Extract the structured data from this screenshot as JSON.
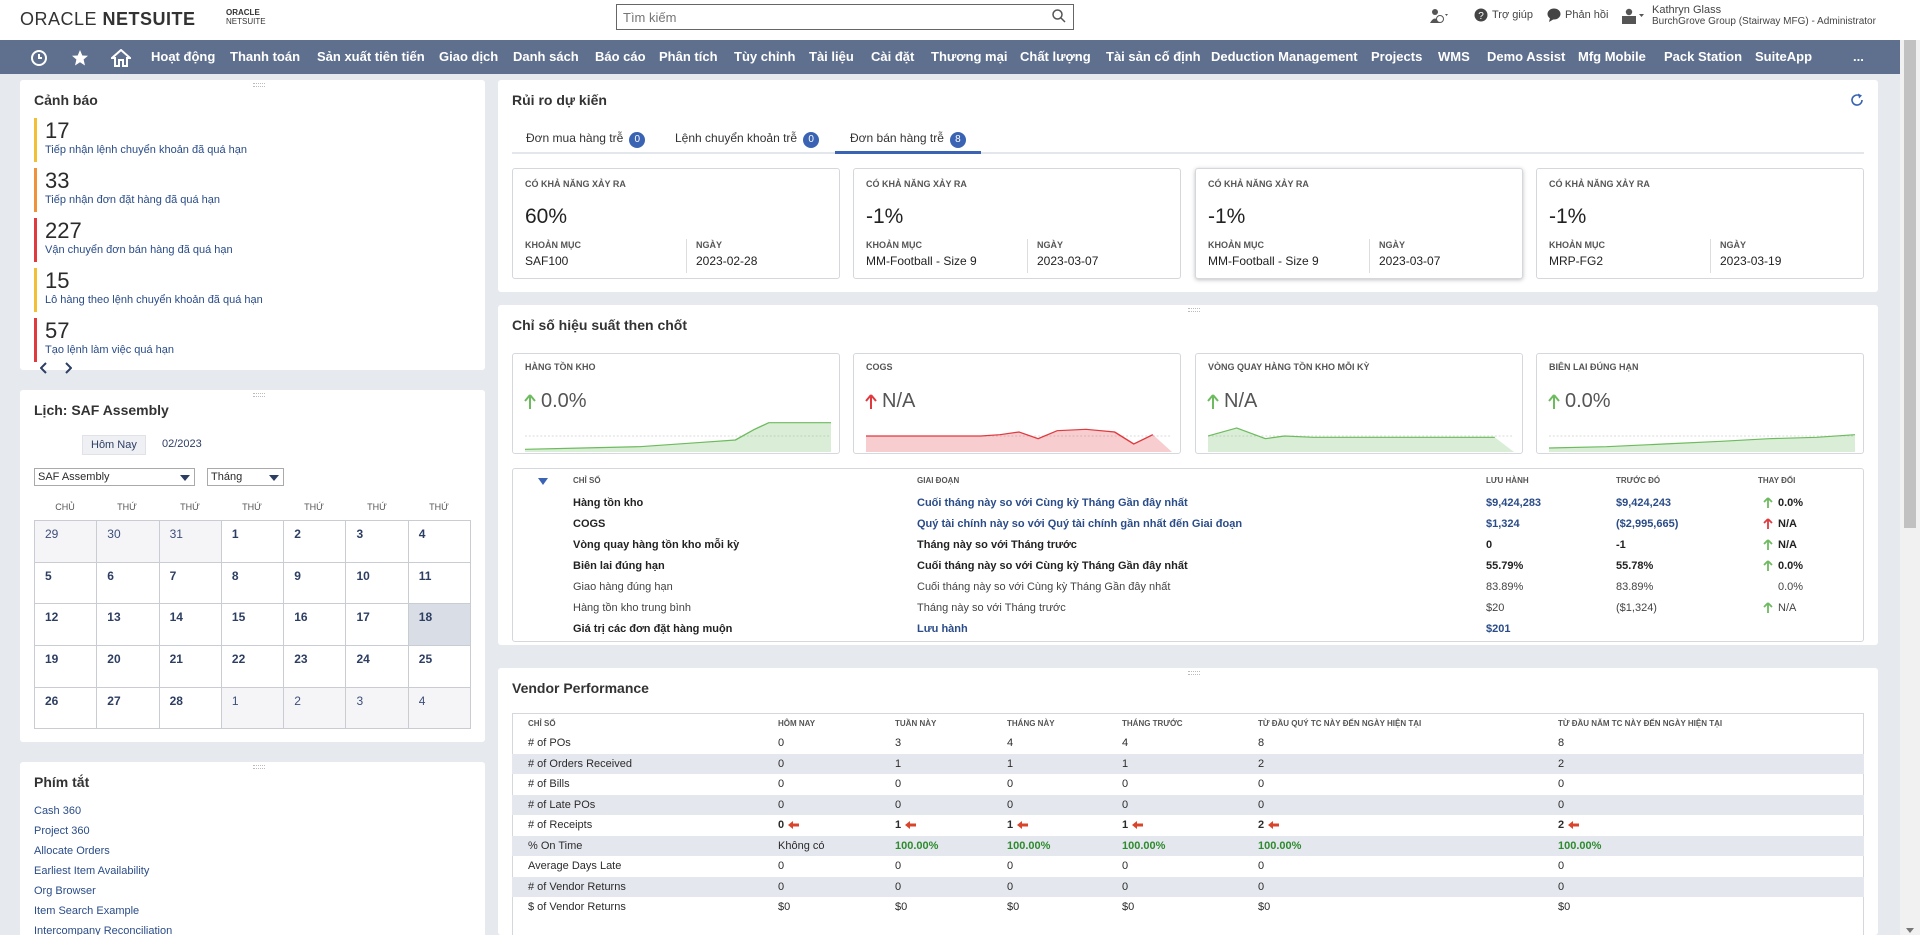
{
  "header": {
    "logo_oracle": "ORACLE",
    "logo_netsuite": "NETSUITE",
    "small_logo_1": "ORACLE",
    "small_logo_2": "NETSUITE",
    "search_placeholder": "Tìm kiếm",
    "help": "Trợ giúp",
    "feedback": "Phản hồi",
    "user_name": "Kathryn Glass",
    "user_role": "BurchGrove Group (Stairway MFG) - Administrator"
  },
  "nav": {
    "items": [
      "Hoạt động",
      "Thanh toán",
      "Sản xuất tiên tiến",
      "Giao dịch",
      "Danh sách",
      "Báo cáo",
      "Phân tích",
      "Tùy chỉnh",
      "Tài liệu",
      "Cài đặt",
      "Thương mại",
      "Chất lượng",
      "Tài sản cố định",
      "Deduction Management",
      "Projects",
      "WMS",
      "Demo Assist",
      "Mfg Mobile",
      "Pack Station",
      "SuiteApp",
      "..."
    ]
  },
  "alerts": {
    "title": "Cảnh báo",
    "items": [
      {
        "count": "17",
        "label": "Tiếp nhận lệnh chuyển khoản đã quá hạn",
        "color": "#f2c037"
      },
      {
        "count": "33",
        "label": "Tiếp nhận đơn đặt hàng đã quá hạn",
        "color": "#f0923b"
      },
      {
        "count": "227",
        "label": "Vận chuyển đơn bán hàng đã quá hạn",
        "color": "#e0393e"
      },
      {
        "count": "15",
        "label": "Lô hàng theo lệnh chuyển khoản đã quá hạn",
        "color": "#f2c037"
      },
      {
        "count": "57",
        "label": "Tạo lệnh làm việc quá hạn",
        "color": "#e0393e"
      }
    ]
  },
  "calendar": {
    "title": "Lịch: SAF Assembly",
    "today": "Hôm Nay",
    "month": "02/2023",
    "select_calendar": "SAF Assembly",
    "select_view": "Tháng",
    "dow": [
      "CHỦ",
      "THỨ",
      "THỨ",
      "THỨ",
      "THỨ",
      "THỨ",
      "THỨ"
    ],
    "weeks": [
      [
        "29",
        "30",
        "31",
        "1",
        "2",
        "3",
        "4"
      ],
      [
        "5",
        "6",
        "7",
        "8",
        "9",
        "10",
        "11"
      ],
      [
        "12",
        "13",
        "14",
        "15",
        "16",
        "17",
        "18"
      ],
      [
        "19",
        "20",
        "21",
        "22",
        "23",
        "24",
        "25"
      ],
      [
        "26",
        "27",
        "28",
        "1",
        "2",
        "3",
        "4"
      ]
    ]
  },
  "shortcuts": {
    "title": "Phím tắt",
    "items": [
      "Cash 360",
      "Project 360",
      "Allocate Orders",
      "Earliest Item Availability",
      "Org Browser",
      "Item Search Example",
      "Intercompany Reconciliation"
    ]
  },
  "risk": {
    "title": "Rủi ro dự kiến",
    "tabs": [
      {
        "label": "Đơn mua hàng trễ",
        "count": "0"
      },
      {
        "label": "Lệnh chuyển khoản trễ",
        "count": "0"
      },
      {
        "label": "Đơn bán hàng trễ",
        "count": "8"
      }
    ],
    "cards": [
      {
        "cap": "CÓ KHẢ NĂNG XẢY RA",
        "pct": "60%",
        "k1": "KHOẢN MỤC",
        "v1": "SAF100",
        "k2": "NGÀY",
        "v2": "2023-02-28"
      },
      {
        "cap": "CÓ KHẢ NĂNG XẢY RA",
        "pct": "-1%",
        "k1": "KHOẢN MỤC",
        "v1": "MM-Football - Size 9",
        "k2": "NGÀY",
        "v2": "2023-03-07"
      },
      {
        "cap": "CÓ KHẢ NĂNG XẢY RA",
        "pct": "-1%",
        "k1": "KHOẢN MỤC",
        "v1": "MM-Football - Size 9",
        "k2": "NGÀY",
        "v2": "2023-03-07"
      },
      {
        "cap": "CÓ KHẢ NĂNG XẢY RA",
        "pct": "-1%",
        "k1": "KHOẢN MỤC",
        "v1": "MRP-FG2",
        "k2": "NGÀY",
        "v2": "2023-03-19"
      }
    ]
  },
  "kpi": {
    "title": "Chỉ số hiệu suất then chốt",
    "cards": [
      {
        "cap": "HÀNG TỒN KHO",
        "val": "0.0%",
        "trend": "up",
        "color": "#6dbb5e"
      },
      {
        "cap": "COGS",
        "val": "N/A",
        "trend": "up-red",
        "color": "#e0393e"
      },
      {
        "cap": "VÒNG QUAY HÀNG TỒN KHO MỖI KỲ",
        "val": "N/A",
        "trend": "up",
        "color": "#6dbb5e"
      },
      {
        "cap": "BIÊN LAI ĐÚNG HẠN",
        "val": "0.0%",
        "trend": "up",
        "color": "#6dbb5e"
      }
    ],
    "table_headers": [
      "CHỈ SỐ",
      "GIAI ĐOẠN",
      "LƯU HÀNH",
      "TRƯỚC ĐÓ",
      "THAY ĐỔI"
    ],
    "rows": [
      {
        "name": "Hàng tồn kho",
        "period_a": "Cuối tháng này so với ",
        "period_b": "Cùng kỳ Tháng Gần đây nhất",
        "cur": "$9,424,283",
        "prev": "$9,424,243",
        "chg": "0.0%",
        "arrow": "up",
        "bold": true,
        "link": true
      },
      {
        "name": "COGS",
        "period_a": "Quý tài chính này so với ",
        "period_b": "Quý tài chính gần nhất đến Giai đoạn",
        "cur": "$1,324",
        "prev": "($2,995,665)",
        "chg": "N/A",
        "arrow": "up-red",
        "bold": true,
        "link": true
      },
      {
        "name": "Vòng quay hàng tồn kho mỗi kỳ",
        "period_a": "Tháng này so với Tháng trước",
        "period_b": "",
        "cur": "0",
        "prev": "-1",
        "chg": "N/A",
        "arrow": "up",
        "bold": true,
        "link": false
      },
      {
        "name": "Biên lai đúng hạn",
        "period_a": "Cuối tháng này so với Cùng kỳ Tháng Gần đây nhất",
        "period_b": "",
        "cur": "55.79%",
        "prev": "55.78%",
        "chg": "0.0%",
        "arrow": "up",
        "bold": true,
        "link": false
      },
      {
        "name": "Giao hàng đúng hạn",
        "period_a": "Cuối tháng này so với Cùng kỳ Tháng Gần đây nhất",
        "period_b": "",
        "cur": "83.89%",
        "prev": "83.89%",
        "chg": "0.0%",
        "arrow": "none",
        "bold": false,
        "link": false
      },
      {
        "name": "Hàng tồn kho trung bình",
        "period_a": "Tháng này so với Tháng trước",
        "period_b": "",
        "cur": "$20",
        "prev": "($1,324)",
        "chg": "N/A",
        "arrow": "up",
        "bold": false,
        "link": false
      },
      {
        "name": "Giá trị các đơn đặt hàng muộn",
        "period_a": "Lưu hành",
        "period_b": "",
        "cur": "$201",
        "prev": "",
        "chg": "",
        "arrow": "none",
        "bold": true,
        "link": true
      }
    ]
  },
  "vendor": {
    "title": "Vendor Performance",
    "headers": [
      "CHỈ SỐ",
      "HÔM NAY",
      "TUẦN NÀY",
      "THÁNG NÀY",
      "THÁNG TRƯỚC",
      "TỪ ĐẦU QUÝ TC NÀY ĐẾN NGÀY HIỆN TẠI",
      "TỪ ĐẦU NĂM TC NÀY ĐẾN NGÀY HIỆN TẠI"
    ],
    "rows": [
      [
        "# of POs",
        "0",
        "3",
        "4",
        "4",
        "8",
        "8"
      ],
      [
        "# of Orders Received",
        "0",
        "1",
        "1",
        "1",
        "2",
        "2"
      ],
      [
        "# of Bills",
        "0",
        "0",
        "0",
        "0",
        "0",
        "0"
      ],
      [
        "# of Late POs",
        "0",
        "0",
        "0",
        "0",
        "0",
        "0"
      ],
      [
        "# of Receipts",
        "0",
        "1",
        "1",
        "1",
        "2",
        "2"
      ],
      [
        "% On Time",
        "Không có",
        "100.00%",
        "100.00%",
        "100.00%",
        "100.00%",
        "100.00%"
      ],
      [
        "Average Days Late",
        "0",
        "0",
        "0",
        "0",
        "0",
        "0"
      ],
      [
        "# of Vendor Returns",
        "0",
        "0",
        "0",
        "0",
        "0",
        "0"
      ],
      [
        "$ of Vendor Returns",
        "$0",
        "$0",
        "$0",
        "$0",
        "$0",
        "$0"
      ]
    ]
  }
}
